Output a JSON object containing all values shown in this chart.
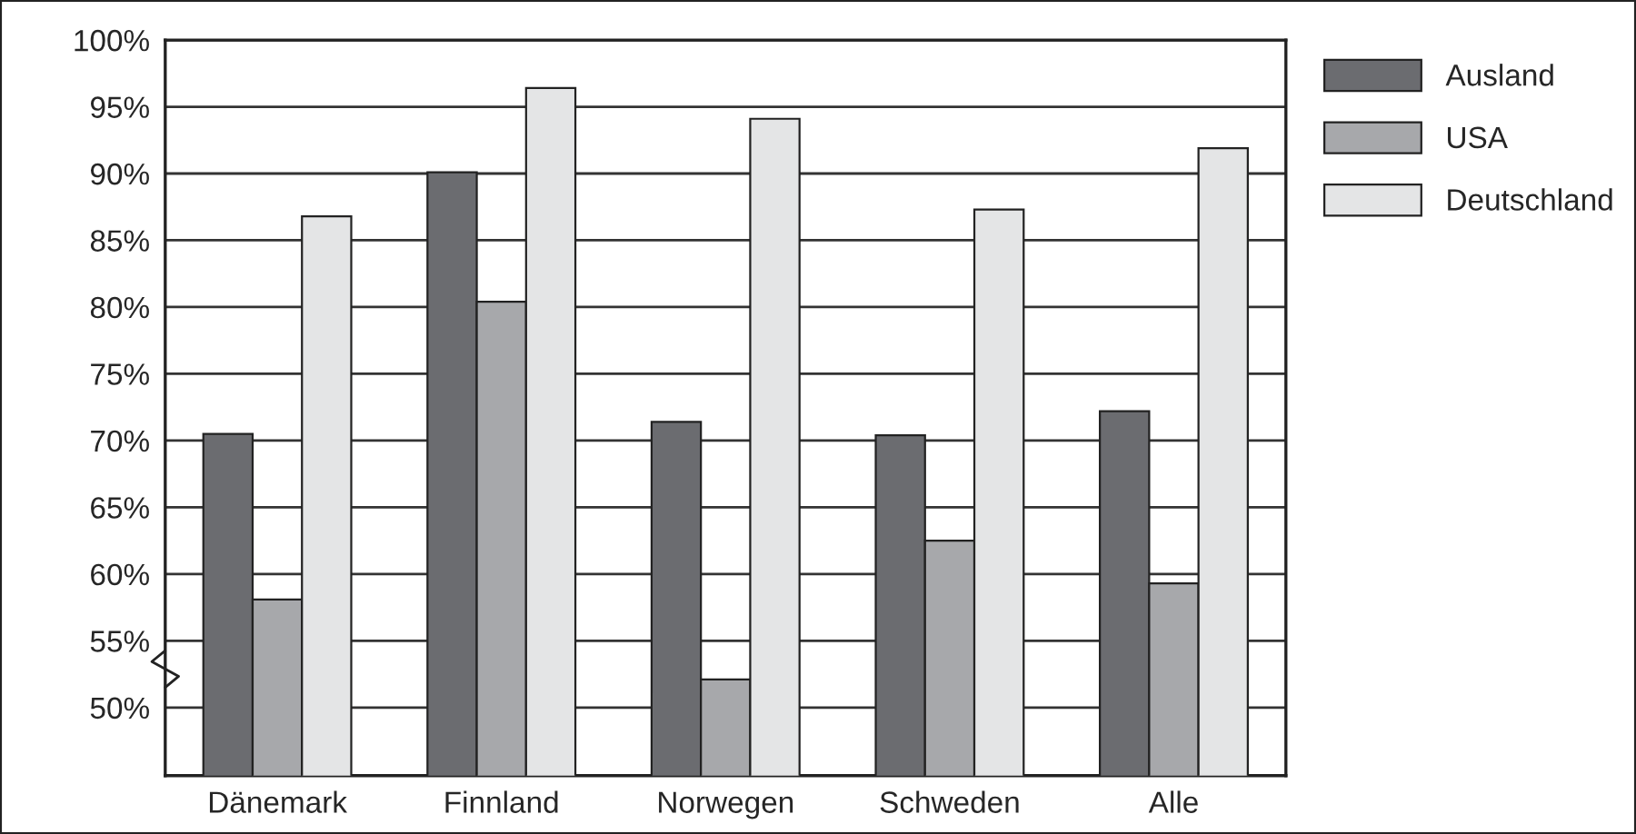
{
  "chart_data": {
    "type": "bar",
    "categories": [
      "Dänemark",
      "Finnland",
      "Norwegen",
      "Schweden",
      "Alle"
    ],
    "series": [
      {
        "name": "Ausland",
        "color": "#6b6c70",
        "values": [
          70.5,
          90.1,
          71.4,
          70.4,
          72.2
        ]
      },
      {
        "name": "USA",
        "color": "#a7a8ab",
        "values": [
          58.1,
          80.4,
          52.1,
          62.5,
          59.3
        ]
      },
      {
        "name": "Deutschland",
        "color": "#e4e5e6",
        "values": [
          86.8,
          96.4,
          94.1,
          87.3,
          91.9
        ]
      }
    ],
    "ylim": [
      44.9,
      100
    ],
    "yticks": [
      {
        "value": 50,
        "label": "50%"
      },
      {
        "value": 55,
        "label": "55%"
      },
      {
        "value": 60,
        "label": "60%"
      },
      {
        "value": 65,
        "label": "65%"
      },
      {
        "value": 70,
        "label": "70%"
      },
      {
        "value": 75,
        "label": "75%"
      },
      {
        "value": 80,
        "label": "80%"
      },
      {
        "value": 85,
        "label": "85%"
      },
      {
        "value": 90,
        "label": "90%"
      },
      {
        "value": 95,
        "label": "95%"
      },
      {
        "value": 100,
        "label": "100%"
      }
    ],
    "grid": "y",
    "legend": "right"
  }
}
